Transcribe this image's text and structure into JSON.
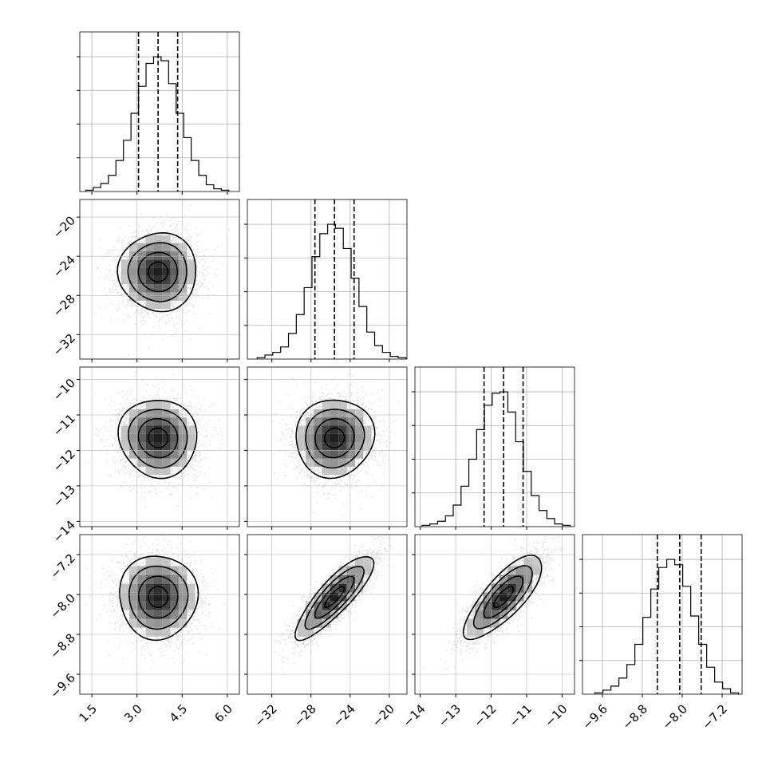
{
  "chart_data": {
    "type": "corner",
    "grid": true,
    "quantile_lines": "dashed",
    "parameters": [
      {
        "id": "p0",
        "range": [
          1.1,
          6.4
        ],
        "ticks": [
          1.5,
          3.0,
          4.5,
          6.0
        ],
        "tick_labels": [
          "1.5",
          "3.0",
          "4.5",
          "6.0"
        ],
        "mean": 3.7,
        "sigma": 0.65,
        "quantiles": [
          3.05,
          3.7,
          4.35
        ],
        "hist_edges": [
          1.3,
          1.55,
          1.8,
          2.05,
          2.3,
          2.55,
          2.8,
          3.05,
          3.3,
          3.55,
          3.8,
          4.05,
          4.3,
          4.55,
          4.8,
          5.05,
          5.3,
          5.55,
          5.8,
          6.05
        ],
        "hist_counts": [
          0.01,
          0.03,
          0.06,
          0.12,
          0.23,
          0.38,
          0.58,
          0.78,
          0.95,
          1.0,
          0.97,
          0.8,
          0.58,
          0.4,
          0.23,
          0.12,
          0.05,
          0.02,
          0.01
        ]
      },
      {
        "id": "p1",
        "range": [
          -34.5,
          -18.2
        ],
        "ticks": [
          -32,
          -28,
          -24,
          -20
        ],
        "tick_labels": [
          "−32",
          "−28",
          "−24",
          "−20"
        ],
        "mean": -25.6,
        "sigma": 2.0,
        "quantiles": [
          -27.6,
          -25.6,
          -23.6
        ],
        "hist_edges": [
          -33.5,
          -32.7,
          -31.9,
          -31.1,
          -30.3,
          -29.5,
          -28.7,
          -27.9,
          -27.1,
          -26.3,
          -25.5,
          -24.7,
          -23.9,
          -23.1,
          -22.3,
          -21.5,
          -20.7,
          -19.9,
          -19.1,
          -18.3
        ],
        "hist_counts": [
          0.01,
          0.03,
          0.05,
          0.09,
          0.19,
          0.33,
          0.53,
          0.76,
          0.93,
          1.0,
          0.97,
          0.82,
          0.6,
          0.39,
          0.2,
          0.1,
          0.05,
          0.02,
          0.01
        ]
      },
      {
        "id": "p2",
        "range": [
          -14.15,
          -9.65
        ],
        "ticks": [
          -14,
          -13,
          -12,
          -11,
          -10
        ],
        "tick_labels": [
          "−14",
          "−13",
          "−12",
          "−11",
          "−10"
        ],
        "mean": -11.65,
        "sigma": 0.55,
        "quantiles": [
          -12.2,
          -11.65,
          -11.1
        ],
        "hist_edges": [
          -13.95,
          -13.73,
          -13.51,
          -13.29,
          -13.07,
          -12.85,
          -12.63,
          -12.41,
          -12.19,
          -11.97,
          -11.75,
          -11.53,
          -11.31,
          -11.09,
          -10.87,
          -10.65,
          -10.43,
          -10.21,
          -9.99,
          -9.77
        ],
        "hist_counts": [
          0.01,
          0.02,
          0.04,
          0.08,
          0.16,
          0.3,
          0.5,
          0.72,
          0.9,
          0.99,
          1.0,
          0.85,
          0.63,
          0.41,
          0.23,
          0.12,
          0.06,
          0.02,
          0.01
        ]
      },
      {
        "id": "p3",
        "range": [
          -10.0,
          -6.8
        ],
        "ticks": [
          -9.6,
          -8.8,
          -8.0,
          -7.2
        ],
        "tick_labels": [
          "−9.6",
          "−8.8",
          "−8.0",
          "−7.2"
        ],
        "mean": -8.05,
        "sigma": 0.42,
        "quantiles": [
          -8.5,
          -8.05,
          -7.62
        ],
        "hist_edges": [
          -9.75,
          -9.59,
          -9.43,
          -9.27,
          -9.11,
          -8.95,
          -8.79,
          -8.63,
          -8.47,
          -8.31,
          -8.15,
          -7.99,
          -7.83,
          -7.67,
          -7.51,
          -7.35,
          -7.19,
          -7.03,
          -6.87
        ],
        "hist_counts": [
          0.01,
          0.03,
          0.06,
          0.12,
          0.22,
          0.37,
          0.57,
          0.78,
          0.94,
          1.0,
          0.96,
          0.8,
          0.58,
          0.37,
          0.2,
          0.09,
          0.04,
          0.01
        ]
      }
    ],
    "correlations": {
      "1-0": 0.0,
      "2-0": -0.05,
      "2-1": 0.05,
      "3-0": 0.0,
      "3-1": 0.85,
      "3-2": 0.78
    },
    "contour_sigma_levels": [
      0.5,
      1.0,
      1.5,
      2.0
    ]
  }
}
